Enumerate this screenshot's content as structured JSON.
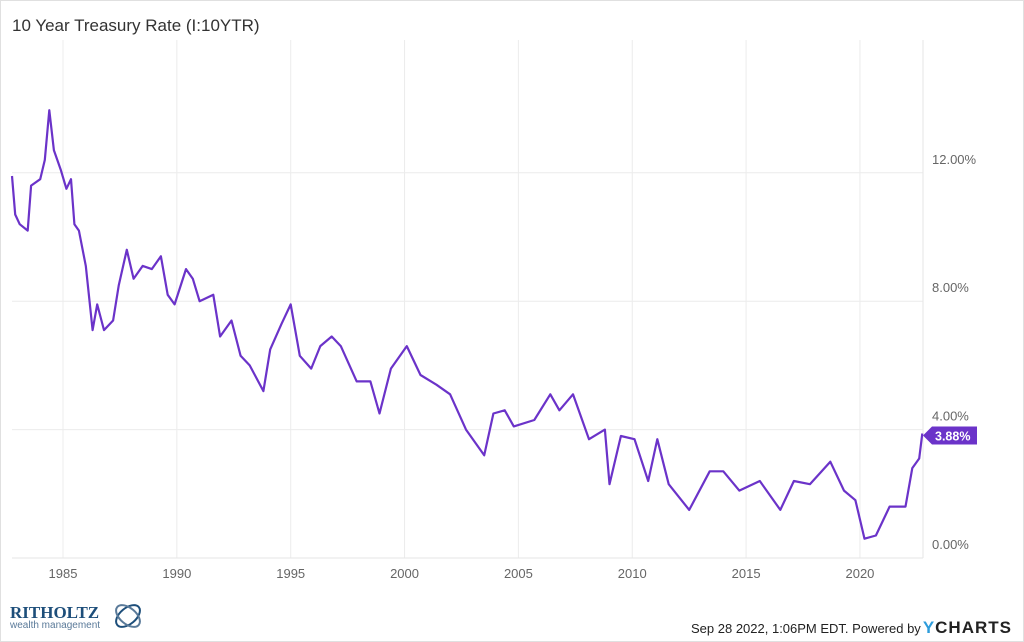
{
  "chart_data": {
    "type": "line",
    "title": "10 Year Treasury Rate (I:10YTR)",
    "xlabel": "",
    "ylabel": "",
    "xlim": [
      1982.76,
      2022.74
    ],
    "ylim": [
      0,
      14.5
    ],
    "grid": true,
    "x_ticks": [
      "1985",
      "1990",
      "1995",
      "2000",
      "2005",
      "2010",
      "2015",
      "2020"
    ],
    "y_ticks": [
      "0.00%",
      "4.00%",
      "8.00%",
      "12.00%"
    ],
    "y_tick_values": [
      0,
      4,
      8,
      12
    ],
    "last_value_label": "3.88%",
    "line_color": "#6b33c9",
    "series": [
      {
        "name": "10 Year Treasury Rate",
        "x": [
          1982.76,
          1982.9,
          1983.1,
          1983.45,
          1983.6,
          1984.0,
          1984.2,
          1984.4,
          1984.6,
          1984.9,
          1985.15,
          1985.35,
          1985.5,
          1985.7,
          1986.0,
          1986.3,
          1986.5,
          1986.8,
          1987.2,
          1987.45,
          1987.8,
          1988.1,
          1988.5,
          1988.9,
          1989.3,
          1989.6,
          1989.9,
          1990.4,
          1990.7,
          1991.0,
          1991.6,
          1991.9,
          1992.4,
          1992.8,
          1993.2,
          1993.8,
          1994.1,
          1994.6,
          1995.0,
          1995.4,
          1995.9,
          1996.3,
          1996.8,
          1997.2,
          1997.9,
          1998.5,
          1998.9,
          1999.4,
          2000.1,
          2000.7,
          2001.4,
          2002.0,
          2002.7,
          2003.5,
          2003.9,
          2004.4,
          2004.8,
          2005.7,
          2006.4,
          2006.8,
          2007.4,
          2008.1,
          2008.8,
          2009.0,
          2009.5,
          2010.1,
          2010.7,
          2011.1,
          2011.6,
          2012.5,
          2013.4,
          2014.0,
          2014.7,
          2015.6,
          2016.5,
          2017.1,
          2017.8,
          2018.7,
          2019.3,
          2019.8,
          2020.2,
          2020.7,
          2021.3,
          2022.0,
          2022.3,
          2022.6,
          2022.74
        ],
        "values": [
          11.9,
          10.7,
          10.4,
          10.2,
          11.6,
          11.8,
          12.4,
          13.95,
          12.7,
          12.1,
          11.5,
          11.8,
          10.4,
          10.2,
          9.1,
          7.1,
          7.9,
          7.1,
          7.4,
          8.5,
          9.6,
          8.7,
          9.1,
          9.0,
          9.4,
          8.2,
          7.9,
          9.0,
          8.7,
          8.0,
          8.2,
          6.9,
          7.4,
          6.3,
          6.0,
          5.2,
          6.5,
          7.3,
          7.9,
          6.3,
          5.9,
          6.6,
          6.9,
          6.6,
          5.5,
          5.5,
          4.5,
          5.9,
          6.6,
          5.7,
          5.4,
          5.1,
          4.0,
          3.2,
          4.5,
          4.6,
          4.1,
          4.3,
          5.1,
          4.6,
          5.1,
          3.7,
          4.0,
          2.3,
          3.8,
          3.7,
          2.4,
          3.7,
          2.3,
          1.5,
          2.7,
          2.7,
          2.1,
          2.4,
          1.5,
          2.4,
          2.3,
          3.0,
          2.1,
          1.8,
          0.6,
          0.7,
          1.6,
          1.6,
          2.8,
          3.1,
          3.88
        ]
      }
    ]
  },
  "footer": {
    "timestamp": "Sep 28 2022, 1:06PM EDT. Powered by",
    "brand_y": "Y",
    "brand_rest": "CHARTS",
    "logo_name": "RITHOLTZ",
    "logo_sub": "wealth management"
  }
}
